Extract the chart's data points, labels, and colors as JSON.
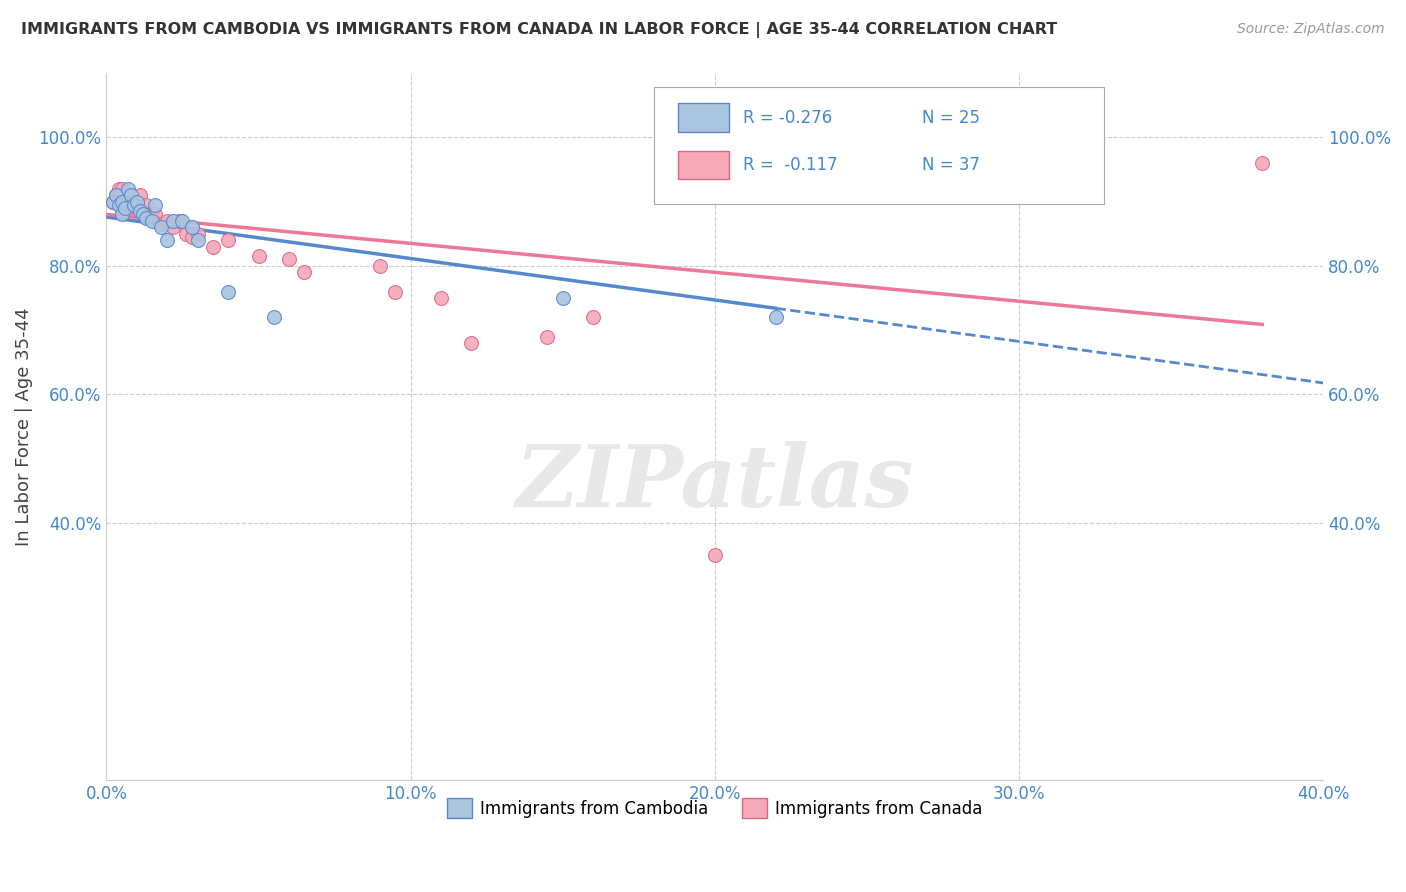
{
  "title": "IMMIGRANTS FROM CAMBODIA VS IMMIGRANTS FROM CANADA IN LABOR FORCE | AGE 35-44 CORRELATION CHART",
  "source": "Source: ZipAtlas.com",
  "ylabel": "In Labor Force | Age 35-44",
  "xlim": [
    0.0,
    0.4
  ],
  "ylim": [
    0.0,
    1.1
  ],
  "xtick_labels": [
    "0.0%",
    "10.0%",
    "20.0%",
    "30.0%",
    "40.0%"
  ],
  "xtick_vals": [
    0.0,
    0.1,
    0.2,
    0.3,
    0.4
  ],
  "ytick_labels": [
    "40.0%",
    "60.0%",
    "80.0%",
    "100.0%"
  ],
  "ytick_vals": [
    0.4,
    0.6,
    0.8,
    1.0
  ],
  "background_color": "#ffffff",
  "grid_color": "#cccccc",
  "color_cambodia": "#aac4e0",
  "color_canada": "#f4a8b8",
  "trendline_color_cambodia": "#5588cc",
  "trendline_color_canada": "#ee7799",
  "cambodia_x": [
    0.002,
    0.003,
    0.004,
    0.005,
    0.005,
    0.006,
    0.007,
    0.008,
    0.009,
    0.01,
    0.011,
    0.012,
    0.013,
    0.015,
    0.016,
    0.018,
    0.02,
    0.022,
    0.025,
    0.028,
    0.03,
    0.04,
    0.055,
    0.15,
    0.22
  ],
  "cambodia_y": [
    0.9,
    0.91,
    0.895,
    0.88,
    0.9,
    0.89,
    0.92,
    0.91,
    0.895,
    0.9,
    0.885,
    0.88,
    0.875,
    0.87,
    0.895,
    0.86,
    0.84,
    0.87,
    0.87,
    0.86,
    0.84,
    0.76,
    0.72,
    0.75,
    0.72
  ],
  "canada_x": [
    0.002,
    0.003,
    0.004,
    0.005,
    0.005,
    0.006,
    0.007,
    0.008,
    0.009,
    0.01,
    0.01,
    0.011,
    0.012,
    0.013,
    0.014,
    0.015,
    0.016,
    0.018,
    0.02,
    0.022,
    0.024,
    0.026,
    0.028,
    0.03,
    0.035,
    0.04,
    0.05,
    0.06,
    0.065,
    0.09,
    0.095,
    0.11,
    0.12,
    0.145,
    0.16,
    0.2,
    0.38
  ],
  "canada_y": [
    0.9,
    0.91,
    0.92,
    0.9,
    0.92,
    0.9,
    0.89,
    0.895,
    0.895,
    0.9,
    0.89,
    0.91,
    0.885,
    0.895,
    0.88,
    0.88,
    0.88,
    0.865,
    0.87,
    0.86,
    0.87,
    0.85,
    0.845,
    0.85,
    0.83,
    0.84,
    0.815,
    0.81,
    0.79,
    0.8,
    0.76,
    0.75,
    0.68,
    0.69,
    0.72,
    0.35,
    0.96
  ],
  "trendline_cam_x0": 0.0,
  "trendline_cam_y0": 0.876,
  "trendline_cam_x1": 0.4,
  "trendline_cam_y1": 0.618,
  "trendline_can_x0": 0.0,
  "trendline_can_y0": 0.88,
  "trendline_can_x1": 0.4,
  "trendline_can_y1": 0.7,
  "trendline_cam_solid_end": 0.22,
  "trendline_can_solid_end": 0.38
}
